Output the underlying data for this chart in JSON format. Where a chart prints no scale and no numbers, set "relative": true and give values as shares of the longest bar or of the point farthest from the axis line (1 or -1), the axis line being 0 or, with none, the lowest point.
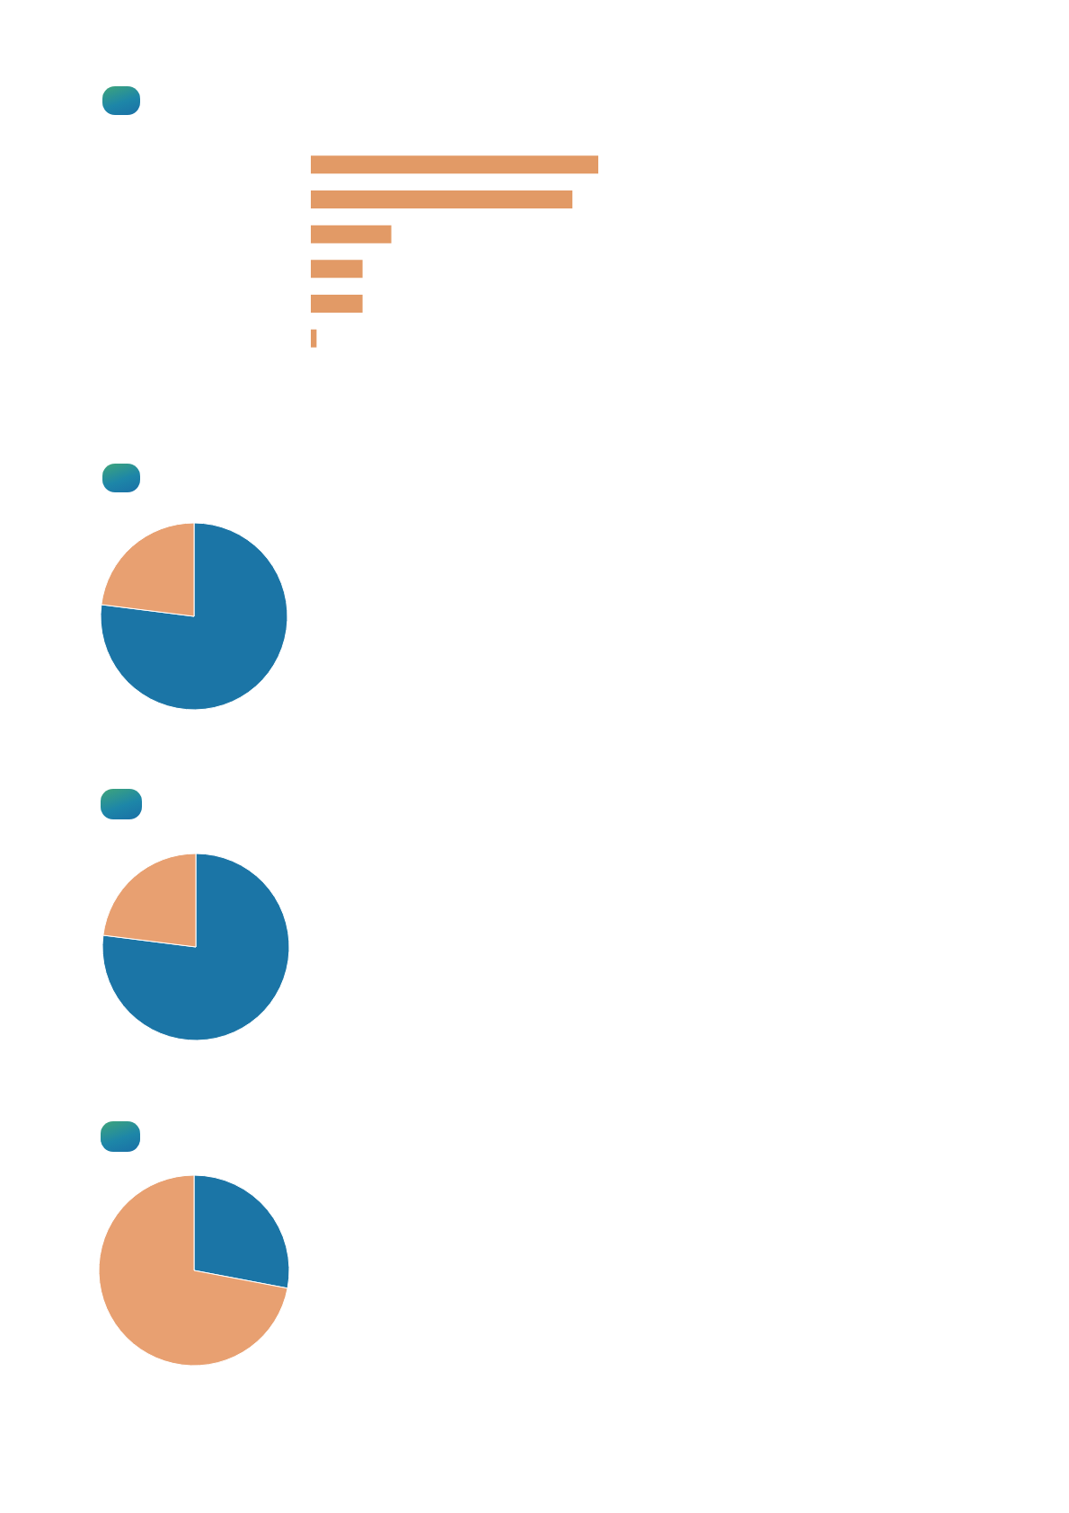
{
  "chart_data": [
    {
      "type": "bar",
      "orientation": "horizontal",
      "relative": true,
      "categories": [
        null,
        null,
        null,
        null,
        null,
        null
      ],
      "values": [
        1,
        0.91,
        0.28,
        0.18,
        0.18,
        0.02
      ],
      "color": "#e29a66"
    },
    {
      "type": "pie",
      "categories": [
        null,
        null
      ],
      "values": [
        77,
        23
      ],
      "colors": [
        "#1b75a6",
        "#e8a071"
      ]
    },
    {
      "type": "pie",
      "categories": [
        null,
        null
      ],
      "values": [
        77,
        23
      ],
      "colors": [
        "#1b75a6",
        "#e8a071"
      ]
    },
    {
      "type": "pie",
      "categories": [
        null,
        null
      ],
      "values": [
        28,
        72
      ],
      "colors": [
        "#1b75a6",
        "#e8a071"
      ]
    }
  ]
}
